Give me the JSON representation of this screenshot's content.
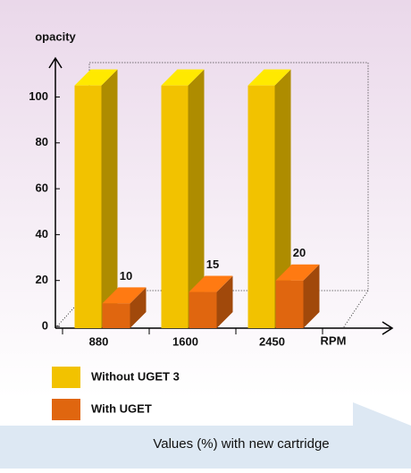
{
  "chart_data": {
    "type": "bar3d",
    "y_label": "opacity",
    "x_label": "RPM",
    "caption": "Values (%) with new cartridge",
    "categories": [
      "880",
      "1600",
      "2450"
    ],
    "series": [
      {
        "name": "Without UGET 3",
        "color": "#f2c200",
        "values": [
          105,
          105,
          105
        ]
      },
      {
        "name": "With UGET",
        "color": "#e0660f",
        "values": [
          10,
          15,
          20
        ]
      }
    ],
    "ylim": [
      0,
      115
    ],
    "yticks": [
      0,
      20,
      40,
      60,
      80,
      100
    ],
    "grid": false
  }
}
